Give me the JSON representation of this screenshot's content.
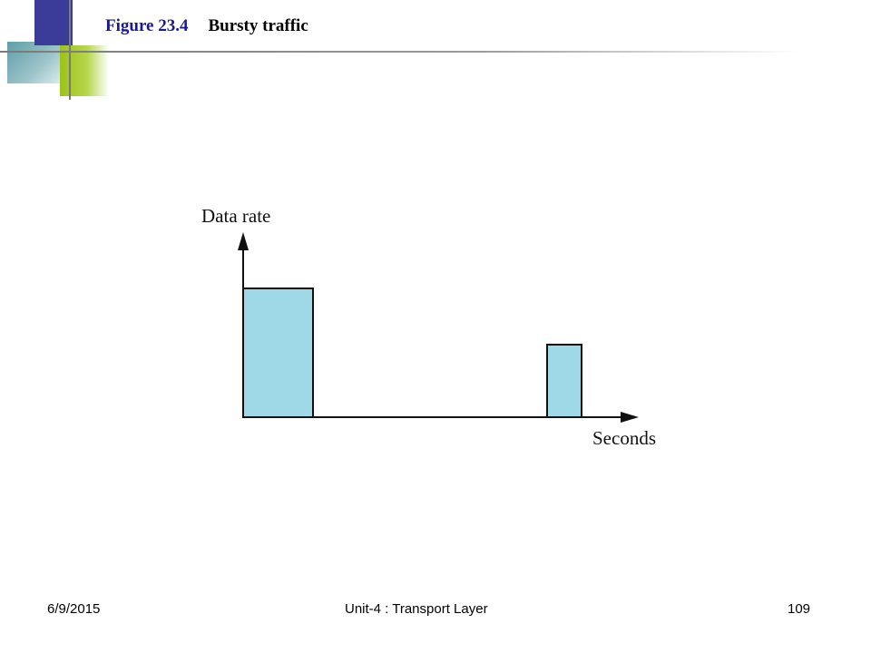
{
  "slide": {
    "figure_label": "Figure 23.4",
    "figure_title": "Bursty traffic"
  },
  "diagram": {
    "y_axis_label": "Data rate",
    "x_axis_label": "Seconds",
    "bar_fill": "#9fd9e8",
    "stroke": "#111111"
  },
  "footer": {
    "date": "6/9/2015",
    "center": "Unit-4 : Transport Layer",
    "page": "109"
  }
}
